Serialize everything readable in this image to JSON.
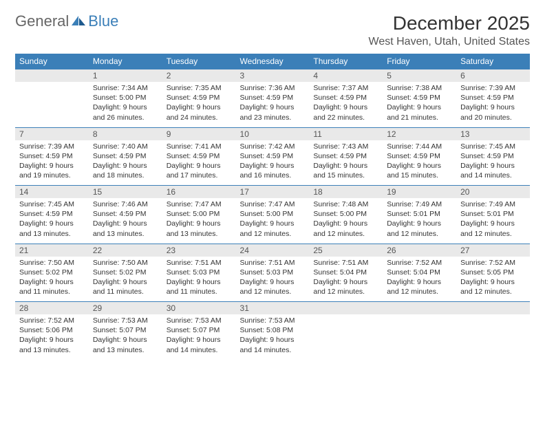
{
  "brand": {
    "text1": "General",
    "text2": "Blue"
  },
  "title": "December 2025",
  "location": "West Haven, Utah, United States",
  "colors": {
    "header_bg": "#3b7fb8",
    "header_text": "#ffffff",
    "daynum_bg": "#e9e9e9",
    "border": "#3b7fb8",
    "text": "#333333"
  },
  "weekdays": [
    "Sunday",
    "Monday",
    "Tuesday",
    "Wednesday",
    "Thursday",
    "Friday",
    "Saturday"
  ],
  "weeks": [
    [
      {
        "n": "",
        "lines": [
          "",
          "",
          "",
          ""
        ]
      },
      {
        "n": "1",
        "lines": [
          "Sunrise: 7:34 AM",
          "Sunset: 5:00 PM",
          "Daylight: 9 hours",
          "and 26 minutes."
        ]
      },
      {
        "n": "2",
        "lines": [
          "Sunrise: 7:35 AM",
          "Sunset: 4:59 PM",
          "Daylight: 9 hours",
          "and 24 minutes."
        ]
      },
      {
        "n": "3",
        "lines": [
          "Sunrise: 7:36 AM",
          "Sunset: 4:59 PM",
          "Daylight: 9 hours",
          "and 23 minutes."
        ]
      },
      {
        "n": "4",
        "lines": [
          "Sunrise: 7:37 AM",
          "Sunset: 4:59 PM",
          "Daylight: 9 hours",
          "and 22 minutes."
        ]
      },
      {
        "n": "5",
        "lines": [
          "Sunrise: 7:38 AM",
          "Sunset: 4:59 PM",
          "Daylight: 9 hours",
          "and 21 minutes."
        ]
      },
      {
        "n": "6",
        "lines": [
          "Sunrise: 7:39 AM",
          "Sunset: 4:59 PM",
          "Daylight: 9 hours",
          "and 20 minutes."
        ]
      }
    ],
    [
      {
        "n": "7",
        "lines": [
          "Sunrise: 7:39 AM",
          "Sunset: 4:59 PM",
          "Daylight: 9 hours",
          "and 19 minutes."
        ]
      },
      {
        "n": "8",
        "lines": [
          "Sunrise: 7:40 AM",
          "Sunset: 4:59 PM",
          "Daylight: 9 hours",
          "and 18 minutes."
        ]
      },
      {
        "n": "9",
        "lines": [
          "Sunrise: 7:41 AM",
          "Sunset: 4:59 PM",
          "Daylight: 9 hours",
          "and 17 minutes."
        ]
      },
      {
        "n": "10",
        "lines": [
          "Sunrise: 7:42 AM",
          "Sunset: 4:59 PM",
          "Daylight: 9 hours",
          "and 16 minutes."
        ]
      },
      {
        "n": "11",
        "lines": [
          "Sunrise: 7:43 AM",
          "Sunset: 4:59 PM",
          "Daylight: 9 hours",
          "and 15 minutes."
        ]
      },
      {
        "n": "12",
        "lines": [
          "Sunrise: 7:44 AM",
          "Sunset: 4:59 PM",
          "Daylight: 9 hours",
          "and 15 minutes."
        ]
      },
      {
        "n": "13",
        "lines": [
          "Sunrise: 7:45 AM",
          "Sunset: 4:59 PM",
          "Daylight: 9 hours",
          "and 14 minutes."
        ]
      }
    ],
    [
      {
        "n": "14",
        "lines": [
          "Sunrise: 7:45 AM",
          "Sunset: 4:59 PM",
          "Daylight: 9 hours",
          "and 13 minutes."
        ]
      },
      {
        "n": "15",
        "lines": [
          "Sunrise: 7:46 AM",
          "Sunset: 4:59 PM",
          "Daylight: 9 hours",
          "and 13 minutes."
        ]
      },
      {
        "n": "16",
        "lines": [
          "Sunrise: 7:47 AM",
          "Sunset: 5:00 PM",
          "Daylight: 9 hours",
          "and 13 minutes."
        ]
      },
      {
        "n": "17",
        "lines": [
          "Sunrise: 7:47 AM",
          "Sunset: 5:00 PM",
          "Daylight: 9 hours",
          "and 12 minutes."
        ]
      },
      {
        "n": "18",
        "lines": [
          "Sunrise: 7:48 AM",
          "Sunset: 5:00 PM",
          "Daylight: 9 hours",
          "and 12 minutes."
        ]
      },
      {
        "n": "19",
        "lines": [
          "Sunrise: 7:49 AM",
          "Sunset: 5:01 PM",
          "Daylight: 9 hours",
          "and 12 minutes."
        ]
      },
      {
        "n": "20",
        "lines": [
          "Sunrise: 7:49 AM",
          "Sunset: 5:01 PM",
          "Daylight: 9 hours",
          "and 12 minutes."
        ]
      }
    ],
    [
      {
        "n": "21",
        "lines": [
          "Sunrise: 7:50 AM",
          "Sunset: 5:02 PM",
          "Daylight: 9 hours",
          "and 11 minutes."
        ]
      },
      {
        "n": "22",
        "lines": [
          "Sunrise: 7:50 AM",
          "Sunset: 5:02 PM",
          "Daylight: 9 hours",
          "and 11 minutes."
        ]
      },
      {
        "n": "23",
        "lines": [
          "Sunrise: 7:51 AM",
          "Sunset: 5:03 PM",
          "Daylight: 9 hours",
          "and 11 minutes."
        ]
      },
      {
        "n": "24",
        "lines": [
          "Sunrise: 7:51 AM",
          "Sunset: 5:03 PM",
          "Daylight: 9 hours",
          "and 12 minutes."
        ]
      },
      {
        "n": "25",
        "lines": [
          "Sunrise: 7:51 AM",
          "Sunset: 5:04 PM",
          "Daylight: 9 hours",
          "and 12 minutes."
        ]
      },
      {
        "n": "26",
        "lines": [
          "Sunrise: 7:52 AM",
          "Sunset: 5:04 PM",
          "Daylight: 9 hours",
          "and 12 minutes."
        ]
      },
      {
        "n": "27",
        "lines": [
          "Sunrise: 7:52 AM",
          "Sunset: 5:05 PM",
          "Daylight: 9 hours",
          "and 12 minutes."
        ]
      }
    ],
    [
      {
        "n": "28",
        "lines": [
          "Sunrise: 7:52 AM",
          "Sunset: 5:06 PM",
          "Daylight: 9 hours",
          "and 13 minutes."
        ]
      },
      {
        "n": "29",
        "lines": [
          "Sunrise: 7:53 AM",
          "Sunset: 5:07 PM",
          "Daylight: 9 hours",
          "and 13 minutes."
        ]
      },
      {
        "n": "30",
        "lines": [
          "Sunrise: 7:53 AM",
          "Sunset: 5:07 PM",
          "Daylight: 9 hours",
          "and 14 minutes."
        ]
      },
      {
        "n": "31",
        "lines": [
          "Sunrise: 7:53 AM",
          "Sunset: 5:08 PM",
          "Daylight: 9 hours",
          "and 14 minutes."
        ]
      },
      {
        "n": "",
        "lines": [
          "",
          "",
          "",
          ""
        ]
      },
      {
        "n": "",
        "lines": [
          "",
          "",
          "",
          ""
        ]
      },
      {
        "n": "",
        "lines": [
          "",
          "",
          "",
          ""
        ]
      }
    ]
  ]
}
